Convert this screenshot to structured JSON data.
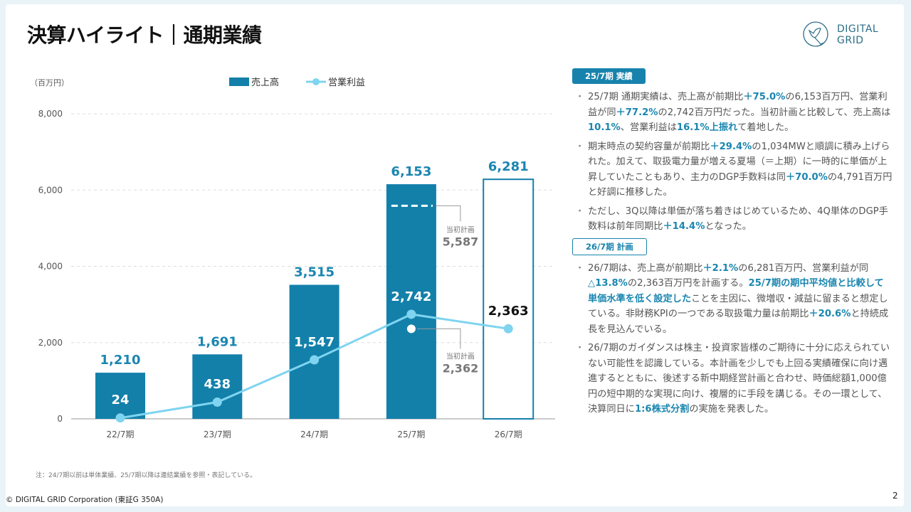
{
  "header": {
    "title": "決算ハイライト｜通期業績",
    "logo_text_1": "DIGITAL",
    "logo_text_2": "GRID"
  },
  "chart_data": {
    "type": "bar",
    "unit_label": "（百万円）",
    "categories": [
      "22/7期",
      "23/7期",
      "24/7期",
      "25/7期",
      "26/7期"
    ],
    "ylim": [
      0,
      8000
    ],
    "yticks": [
      "0",
      "2,000",
      "4,000",
      "6,000",
      "8,000"
    ],
    "grid": true,
    "legend_placement": "top",
    "series": [
      {
        "name": "売上高",
        "type": "bar",
        "values": [
          1210,
          1691,
          3515,
          6153,
          6281
        ],
        "labels": [
          "1,210",
          "1,691",
          "3,515",
          "6,153",
          "6,281"
        ],
        "color": "#1380aa",
        "last_is_plan": true
      },
      {
        "name": "営業利益",
        "type": "line",
        "values": [
          24,
          438,
          1547,
          2742,
          2363
        ],
        "labels": [
          "24",
          "438",
          "1,547",
          "2,742",
          "2,363"
        ],
        "color": "#7fd4ef"
      }
    ],
    "annotations": [
      {
        "label": "当初計画",
        "value_label": "5,587",
        "value": 5587,
        "category": "25/7期",
        "series": "売上高"
      },
      {
        "label": "当初計画",
        "value_label": "2,362",
        "value": 2362,
        "category": "25/7期",
        "series": "営業利益"
      }
    ]
  },
  "sections": [
    {
      "badge": "25/7期 実績",
      "style": "solid",
      "bullets": [
        [
          [
            "25/7期 通期実績は、売上高が前期比",
            0
          ],
          [
            "＋75.0%",
            1
          ],
          [
            "の6,153百万円、営業利益が同",
            0
          ],
          [
            "＋77.2%",
            1
          ],
          [
            "の2,742百万円だった。当初計画と比較して、売上高は",
            0
          ],
          [
            "10.1%",
            1
          ],
          [
            "、営業利益は",
            0
          ],
          [
            "16.1%上振れ",
            1
          ],
          [
            "て着地した。",
            0
          ]
        ],
        [
          [
            "期末時点の契約容量が前期比",
            0
          ],
          [
            "＋29.4%",
            1
          ],
          [
            "の1,034MWと順調に積み上げられた。加えて、取扱電力量が増える夏場（＝上期）に一時的に単価が上昇していたこともあり、主力のDGP手数料は同",
            0
          ],
          [
            "＋70.0%",
            1
          ],
          [
            "の4,791百万円と好調に推移した。",
            0
          ]
        ],
        [
          [
            "ただし、3Q以降は単価が落ち着きはじめているため、4Q単体のDGP手数料は前年同期比",
            0
          ],
          [
            "＋14.4%",
            1
          ],
          [
            "となった。",
            0
          ]
        ]
      ]
    },
    {
      "badge": "26/7期 計画",
      "style": "outline",
      "bullets": [
        [
          [
            "26/7期は、売上高が前期比",
            0
          ],
          [
            "＋2.1%",
            1
          ],
          [
            "の6,281百万円、営業利益が同",
            0
          ],
          [
            "△13.8%",
            1
          ],
          [
            "の2,363百万円を計画する。",
            0
          ],
          [
            "25/7期の期中平均値と比較して単価水準を低く設定した",
            1
          ],
          [
            "ことを主因に、微増収・減益に留まると想定している。非財務KPIの一つである取扱電力量は前期比",
            0
          ],
          [
            "＋20.6%",
            1
          ],
          [
            "と持続成長を見込んでいる。",
            0
          ]
        ],
        [
          [
            "26/7期のガイダンスは株主・投資家皆様のご期待に十分に応えられていない可能性を認識している。本計画を少しでも上回る実績確保に向け邁進するとともに、後述する新中期経営計画と合わせ、時価総額1,000億円の短中期的な実現に向け、複層的に手段を講じる。その一環として、決算同日に",
            0
          ],
          [
            "1:6株式分割",
            1
          ],
          [
            "の実施を発表した。",
            0
          ]
        ]
      ]
    }
  ],
  "footer": {
    "note": "注：24/7期以前は単体業績、25/7期以降は連結業績を参照・表記している。",
    "copyright": "© DIGITAL GRID Corporation (東証G 350A)",
    "page": "2"
  }
}
